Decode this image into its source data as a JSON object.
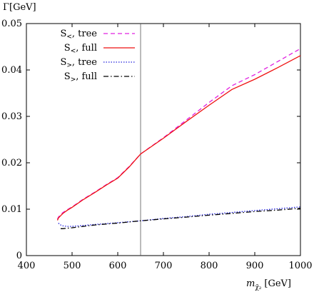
{
  "chart_data": {
    "type": "line",
    "ylabel": "Γ[GeV]",
    "xlabel_main": "m",
    "xlabel_subscript": "χ̃₂",
    "xlabel_unit": "[GeV]",
    "xlim": [
      400,
      1000
    ],
    "ylim": [
      0,
      0.05
    ],
    "xticks": [
      400,
      500,
      600,
      700,
      800,
      900,
      1000
    ],
    "yticks": [
      0,
      0.01,
      0.02,
      0.03,
      0.04,
      0.05
    ],
    "xtick_labels": [
      "400",
      "500",
      "600",
      "700",
      "800",
      "900",
      "1000"
    ],
    "ytick_labels": [
      "0",
      "0.01",
      "0.02",
      "0.03",
      "0.04",
      "0.05"
    ],
    "grid": false,
    "legend_position": "top-left",
    "vline": {
      "x": 650,
      "color": "#555555"
    },
    "series": [
      {
        "name_main": "S",
        "name_sub": "<",
        "name_rest": ", tree",
        "color": "#e020e0",
        "dash": "6,4",
        "x": [
          468,
          470,
          475,
          480,
          490,
          500,
          525,
          550,
          575,
          600,
          625,
          650,
          700,
          750,
          800,
          850,
          900,
          950,
          1000
        ],
        "y": [
          0.0078,
          0.0083,
          0.0088,
          0.0093,
          0.0099,
          0.0105,
          0.0122,
          0.0137,
          0.0153,
          0.0168,
          0.0192,
          0.0219,
          0.0254,
          0.0292,
          0.033,
          0.0366,
          0.039,
          0.0418,
          0.0446
        ]
      },
      {
        "name_main": "S",
        "name_sub": "<",
        "name_rest": ", full",
        "color": "#ee1111",
        "dash": "",
        "x": [
          468,
          470,
          475,
          480,
          490,
          500,
          525,
          550,
          575,
          600,
          625,
          650,
          700,
          750,
          800,
          850,
          900,
          950,
          1000
        ],
        "y": [
          0.0076,
          0.0081,
          0.0086,
          0.0091,
          0.0098,
          0.0104,
          0.0121,
          0.0136,
          0.0152,
          0.0167,
          0.0191,
          0.0219,
          0.0253,
          0.0289,
          0.0324,
          0.0358,
          0.038,
          0.0405,
          0.0431
        ]
      },
      {
        "name_main": "S",
        "name_sub": ">",
        "name_rest": ", tree",
        "color": "#2222dd",
        "dash": "1.5,2",
        "x": [
          470,
          475,
          480,
          490,
          500,
          525,
          550,
          600,
          650,
          700,
          750,
          800,
          850,
          900,
          950,
          1000
        ],
        "y": [
          0.007,
          0.0066,
          0.0064,
          0.0063,
          0.0063,
          0.0065,
          0.0067,
          0.0071,
          0.0075,
          0.008,
          0.0084,
          0.0089,
          0.0093,
          0.0097,
          0.0101,
          0.0105
        ]
      },
      {
        "name_main": "S",
        "name_sub": ">",
        "name_rest": ", full",
        "color": "#000000",
        "dash": "7,3,1.5,3",
        "x": [
          475,
          480,
          490,
          500,
          525,
          550,
          600,
          650,
          700,
          750,
          800,
          850,
          900,
          950,
          1000
        ],
        "y": [
          0.0058,
          0.0058,
          0.0059,
          0.006,
          0.0063,
          0.0066,
          0.007,
          0.0075,
          0.0079,
          0.0083,
          0.0087,
          0.0091,
          0.0095,
          0.0098,
          0.0102
        ]
      }
    ]
  }
}
